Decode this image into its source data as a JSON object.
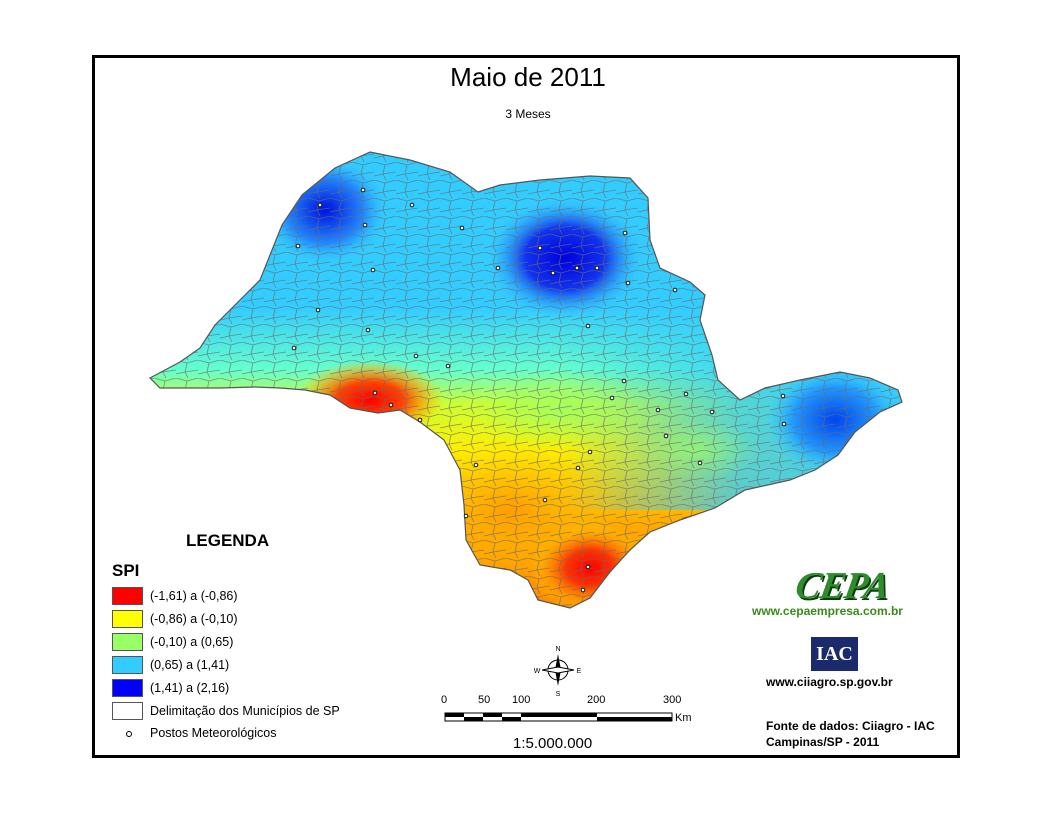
{
  "map": {
    "title": "Maio de 2011",
    "subtitle": "3 Meses"
  },
  "legend": {
    "heading": "LEGENDA",
    "index_label": "SPI",
    "classes": [
      {
        "label": "(-1,61) a (-0,86)",
        "color": "#ff0000"
      },
      {
        "label": "(-0,86) a (-0,10)",
        "color": "#ffff00"
      },
      {
        "label": "(-0,10) a (0,65)",
        "color": "#99ff66"
      },
      {
        "label": "(0,65) a (1,41)",
        "color": "#33ccff"
      },
      {
        "label": "(1,41) a (2,16)",
        "color": "#0000ff"
      }
    ],
    "municipalities_label": "Delimitação dos Municípios de SP",
    "stations_label": "Postos Meteorológicos"
  },
  "scale_bar": {
    "ticks": [
      "0",
      "50",
      "100",
      "200",
      "300"
    ],
    "unit": "Km",
    "ratio": "1:5.000.000"
  },
  "compass": {
    "n": "N",
    "s": "S",
    "e": "E",
    "w": "W"
  },
  "credits": {
    "cepa_logo": "CEPA",
    "cepa_url": "www.cepaempresa.com.br",
    "iac_logo": "IAC",
    "iac_url": "www.ciiagro.sp.gov.br",
    "source_line1": "Fonte de dados: Ciiagro - IAC",
    "source_line2": "Campinas/SP - 2011"
  },
  "colors": {
    "very_dry": "#ff0000",
    "dry": "#ffff00",
    "normal": "#99ff66",
    "wet": "#33ccff",
    "very_wet": "#0000ff",
    "boundaries": "#6b6b6b"
  }
}
